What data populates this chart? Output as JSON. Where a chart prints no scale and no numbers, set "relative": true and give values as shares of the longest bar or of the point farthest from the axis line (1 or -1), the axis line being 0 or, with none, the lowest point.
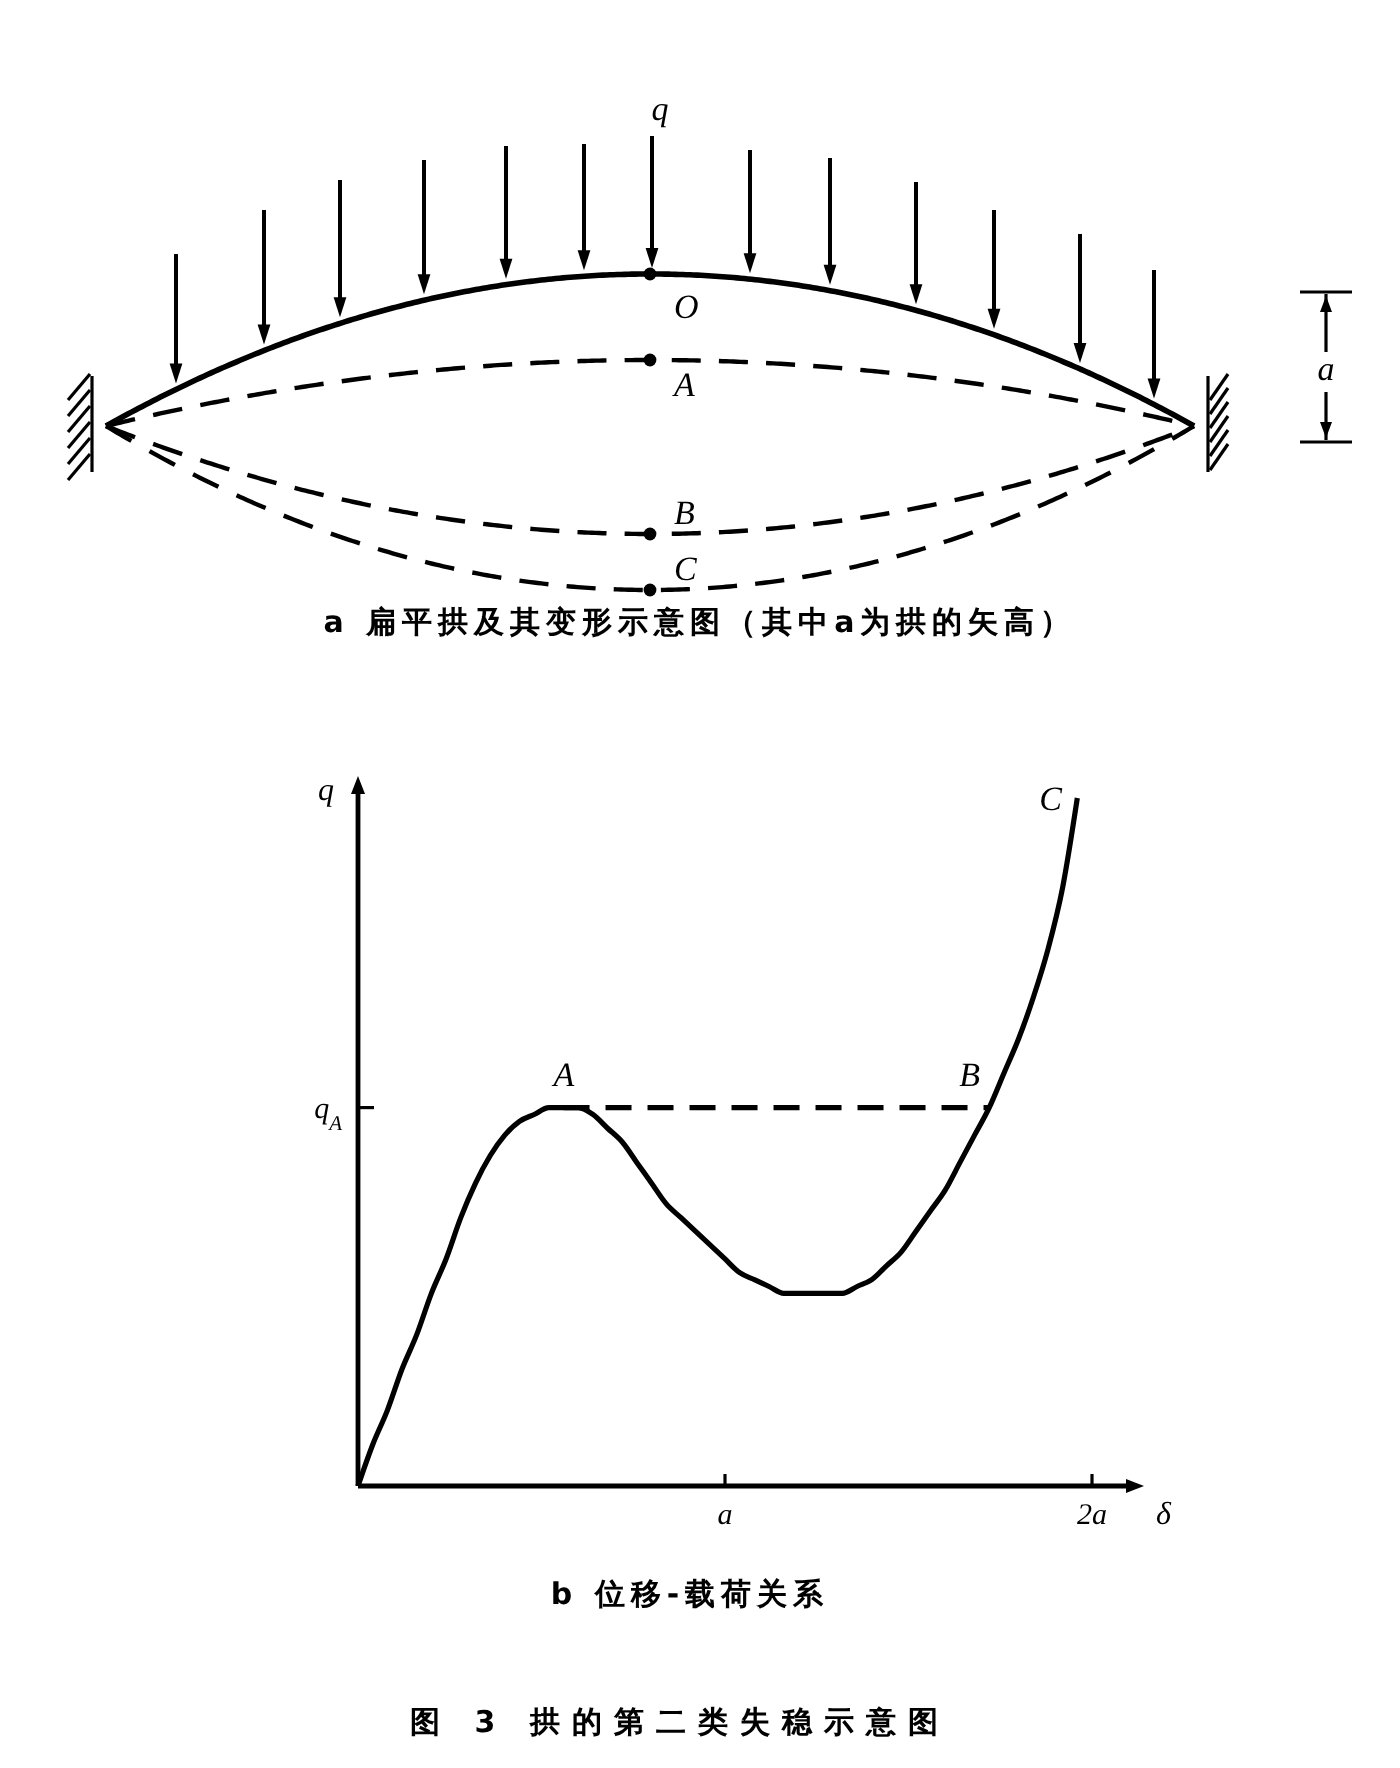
{
  "chart_data": [
    {
      "type": "other",
      "title": "a 扁平拱及其变形示意图（其中a为拱的矢高）",
      "annotations": [
        "q",
        "O",
        "A",
        "B",
        "C",
        "a"
      ]
    },
    {
      "type": "line",
      "title": "b 位移-载荷关系",
      "xlabel": "δ",
      "ylabel": "q",
      "relative": true,
      "categories": [
        null,
        null,
        null,
        null,
        null,
        null,
        null,
        null,
        null,
        null,
        null,
        null,
        null,
        null,
        null,
        null,
        null,
        null,
        null,
        null,
        null,
        null,
        null,
        null,
        null,
        "a",
        null,
        null,
        null,
        null,
        null,
        null,
        null,
        null,
        null,
        null,
        null,
        null,
        null,
        null,
        null,
        null,
        null,
        null,
        null,
        null,
        null,
        null,
        null,
        null,
        "2a"
      ],
      "series": [
        {
          "color": "#000000",
          "values": [
            0,
            0.06,
            0.11,
            0.17,
            0.22,
            0.28,
            0.33,
            0.39,
            0.44,
            0.48,
            0.51,
            0.53,
            0.54,
            0.55,
            0.55,
            0.55,
            0.54,
            0.52,
            0.5,
            0.47,
            0.44,
            0.41,
            0.39,
            0.37,
            0.35,
            0.33,
            0.31,
            0.3,
            0.29,
            0.28,
            0.28,
            0.28,
            0.28,
            0.28,
            0.29,
            0.3,
            0.32,
            0.34,
            0.37,
            0.4,
            0.43,
            0.47,
            0.51,
            0.55,
            0.6,
            0.65,
            0.71,
            0.78,
            0.87,
            1,
            null
          ]
        },
        {
          "color": "#000000",
          "line_style": "dashed",
          "values": [
            null,
            null,
            null,
            null,
            null,
            null,
            null,
            null,
            null,
            null,
            null,
            null,
            null,
            null,
            0.55,
            0.55,
            0.55,
            0.55,
            0.55,
            0.55,
            0.55,
            0.55,
            0.55,
            0.55,
            0.55,
            0.55,
            0.55,
            0.55,
            0.55,
            0.55,
            0.55,
            0.55,
            0.55,
            0.55,
            0.55,
            0.55,
            0.55,
            0.55,
            0.55,
            0.55,
            0.55,
            0.55,
            0.55,
            0.55,
            null,
            null,
            null,
            null,
            null,
            null,
            null
          ]
        }
      ],
      "ref_lines": [
        {
          "axis": "y",
          "value": 0.55,
          "label": "q$_{A}$"
        }
      ],
      "annotations": [
        "A",
        "B",
        "C",
        "图 3 拱的第二类失稳示意图"
      ]
    }
  ]
}
